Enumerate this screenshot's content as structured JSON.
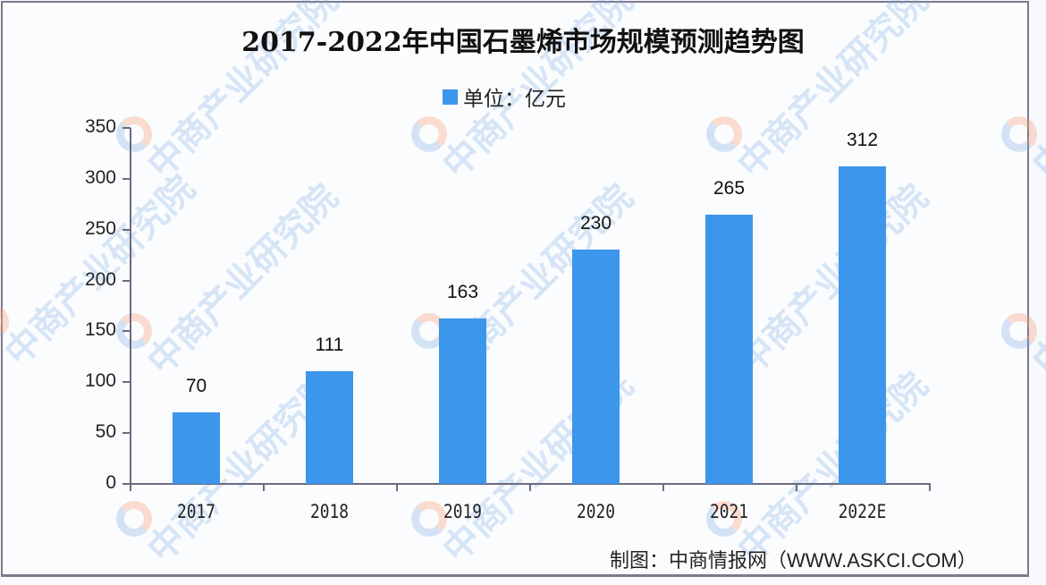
{
  "title": "2017-2022年中国石墨烯市场规模预测趋势图",
  "legend": {
    "label": "单位：亿元",
    "color": "#3c96ec"
  },
  "source": "制图：中商情报网（WWW.ASKCI.COM）",
  "watermark": "中商产业研究院",
  "y_ticks": [
    "350",
    "300",
    "250",
    "200",
    "150",
    "100",
    "50",
    "0"
  ],
  "chart_data": {
    "type": "bar",
    "title": "2017-2022年中国石墨烯市场规模预测趋势图",
    "categories": [
      "2017",
      "2018",
      "2019",
      "2020",
      "2021",
      "2022E"
    ],
    "series": [
      {
        "name": "单位：亿元",
        "values": [
          70,
          111,
          163,
          230,
          265,
          312
        ],
        "color": "#3c96ec"
      }
    ],
    "values": [
      70,
      111,
      163,
      230,
      265,
      312
    ],
    "value_labels": [
      "70",
      "111",
      "163",
      "230",
      "265",
      "312"
    ],
    "xlabel": "",
    "ylabel": "",
    "unit": "亿元",
    "ylim": [
      0,
      350
    ],
    "y_ticks": [
      0,
      50,
      100,
      150,
      200,
      250,
      300,
      350
    ],
    "grid": false,
    "legend_position": "top",
    "source": "制图：中商情报网（WWW.ASKCI.COM）"
  }
}
